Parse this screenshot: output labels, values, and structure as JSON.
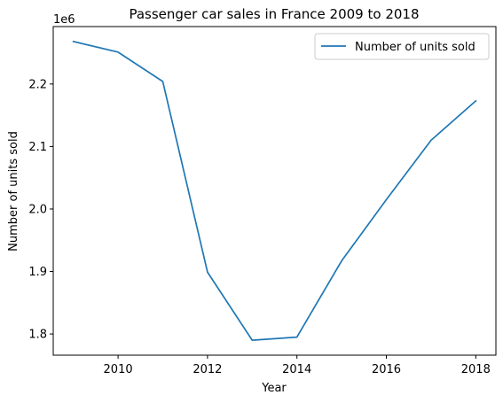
{
  "chart_data": {
    "type": "line",
    "title": "Passenger car sales in France 2009 to 2018",
    "xlabel": "Year",
    "ylabel": "Number of units sold",
    "y_offset_label": "1e6",
    "x": [
      2009,
      2010,
      2011,
      2012,
      2013,
      2014,
      2015,
      2016,
      2017,
      2018
    ],
    "series": [
      {
        "name": "Number of units sold",
        "color": "#1f77b4",
        "values": [
          2268000,
          2251000,
          2204000,
          1899000,
          1790000,
          1795000,
          1917000,
          2015000,
          2110000,
          2173000
        ]
      }
    ],
    "xlim": [
      2008.55,
      2018.45
    ],
    "ylim": [
      1766100,
      2291900
    ],
    "x_ticks": [
      2010,
      2012,
      2014,
      2016,
      2018
    ],
    "x_tick_labels": [
      "2010",
      "2012",
      "2014",
      "2016",
      "2018"
    ],
    "y_ticks": [
      1800000,
      1900000,
      2000000,
      2100000,
      2200000
    ],
    "y_tick_labels": [
      "1.8",
      "1.9",
      "2.0",
      "2.1",
      "2.2"
    ],
    "grid": false,
    "legend_position": "top-right"
  }
}
